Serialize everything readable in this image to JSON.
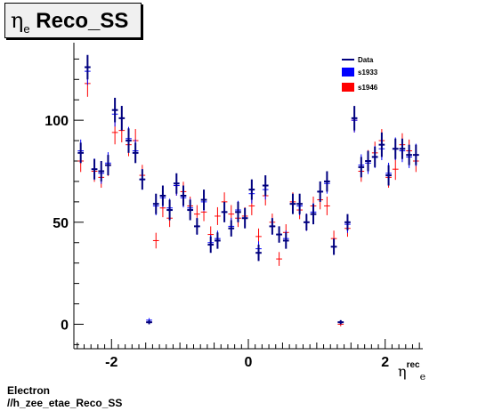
{
  "title": {
    "symbol": "η",
    "subscript": "e",
    "text": "Reco_SS"
  },
  "footer": {
    "line1": "Electron",
    "line2": "//h_zee_etae_Reco_SS"
  },
  "xaxis": {
    "symbol": "η",
    "superscript": "rec",
    "subscript": "e"
  },
  "colors": {
    "data": "#00007f",
    "s1933": "#0000ff",
    "s1946": "#ff0000"
  },
  "chart_data": {
    "type": "scatter",
    "xlim": [
      -2.55,
      2.55
    ],
    "ylim": [
      -12,
      138
    ],
    "xticks": [
      -2,
      0,
      2
    ],
    "xtick_labels": [
      "-2",
      "0",
      "2"
    ],
    "yticks": [
      0,
      50,
      100
    ],
    "ytick_labels": [
      "0",
      "50",
      "100"
    ],
    "legend": {
      "position": "top-right",
      "entries": [
        "Data",
        "s1933",
        "s1946"
      ]
    },
    "bin_width": 0.1,
    "x": [
      -2.45,
      -2.35,
      -2.25,
      -2.15,
      -2.05,
      -1.95,
      -1.85,
      -1.75,
      -1.65,
      -1.55,
      -1.45,
      -1.35,
      -1.25,
      -1.15,
      -1.05,
      -0.95,
      -0.85,
      -0.75,
      -0.65,
      -0.55,
      -0.45,
      -0.35,
      -0.25,
      -0.15,
      -0.05,
      0.05,
      0.15,
      0.25,
      0.35,
      0.45,
      0.55,
      0.65,
      0.75,
      0.85,
      0.95,
      1.05,
      1.15,
      1.25,
      1.35,
      1.45,
      1.55,
      1.65,
      1.75,
      1.85,
      1.95,
      2.05,
      2.15,
      2.25,
      2.35,
      2.45
    ],
    "series": [
      {
        "name": "Data",
        "values": [
          84,
          126,
          76,
          75,
          78,
          105,
          101,
          90,
          84,
          71,
          1,
          59,
          63,
          56,
          69,
          63,
          56,
          48,
          61,
          39,
          41,
          55,
          47,
          55,
          52,
          66,
          35,
          68,
          48,
          44,
          41,
          59,
          59,
          50,
          54,
          65,
          70,
          38,
          1,
          50,
          101,
          77,
          80,
          82,
          88,
          73,
          86,
          86,
          83,
          83
        ],
        "errors": [
          5,
          6,
          5,
          5,
          5,
          6,
          6,
          6,
          5,
          5,
          1,
          5,
          5,
          5,
          5,
          5,
          5,
          4,
          5,
          4,
          4,
          5,
          4,
          5,
          5,
          5,
          4,
          5,
          4,
          4,
          4,
          5,
          5,
          4,
          5,
          5,
          5,
          4,
          1,
          4,
          6,
          5,
          5,
          5,
          6,
          5,
          5,
          5,
          5,
          5
        ]
      },
      {
        "name": "s1933",
        "values": [
          85,
          124,
          76,
          74,
          79,
          103,
          101,
          91,
          85,
          71,
          2,
          58,
          62,
          57,
          68,
          62,
          57,
          48,
          60,
          40,
          42,
          55,
          48,
          56,
          52,
          64,
          37,
          66,
          48,
          44,
          42,
          59,
          58,
          50,
          55,
          65,
          69,
          38,
          1,
          49,
          100,
          78,
          79,
          82,
          86,
          74,
          86,
          85,
          82,
          83
        ]
      },
      {
        "name": "s1946",
        "values": [
          80,
          118,
          75,
          72,
          78,
          94,
          95,
          88,
          90,
          73,
          1,
          41,
          57,
          52,
          68,
          65,
          58,
          54,
          55,
          44,
          53,
          60,
          54,
          52,
          53,
          58,
          43,
          63,
          50,
          32,
          45,
          60,
          56,
          50,
          58,
          61,
          58,
          42,
          0,
          47,
          100,
          75,
          80,
          84,
          90,
          72,
          76,
          88,
          85,
          80
        ]
      }
    ]
  }
}
